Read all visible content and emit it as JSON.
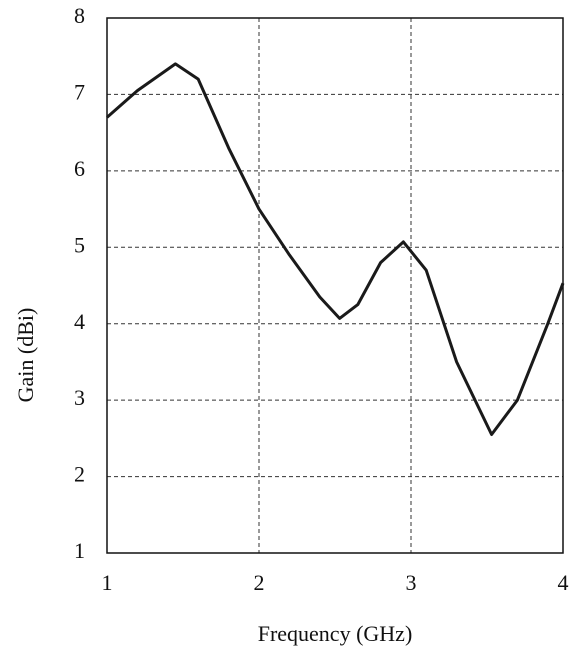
{
  "chart_data": {
    "type": "line",
    "x_label": "Frequency (GHz)",
    "y_label": "Gain (dBi)",
    "x": [
      1.0,
      1.2,
      1.45,
      1.6,
      1.8,
      2.0,
      2.2,
      2.4,
      2.53,
      2.65,
      2.8,
      2.95,
      3.1,
      3.3,
      3.53,
      3.7,
      3.9,
      4.0
    ],
    "series": [
      {
        "color": "#1a1a1a",
        "values": [
          6.7,
          7.05,
          7.4,
          7.2,
          6.3,
          5.5,
          4.9,
          4.35,
          4.07,
          4.25,
          4.8,
          5.07,
          4.7,
          3.5,
          2.55,
          3.0,
          4.0,
          4.53
        ]
      }
    ],
    "xlim": [
      1,
      4
    ],
    "xticks": [
      1,
      2,
      3,
      4
    ],
    "ylim": [
      1,
      8
    ],
    "yticks": [
      1,
      2,
      3,
      4,
      5,
      6,
      7,
      8
    ],
    "grid": true
  }
}
